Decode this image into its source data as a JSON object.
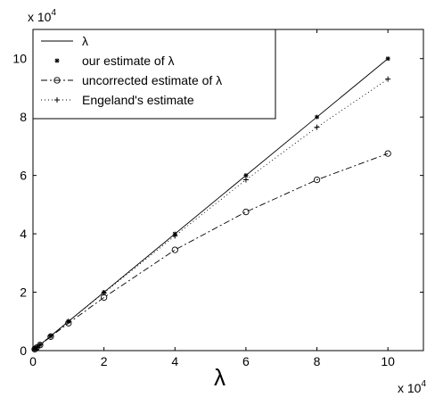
{
  "chart_data": {
    "type": "line",
    "title": "",
    "xlabel": "λ",
    "ylabel": "",
    "x_multiplier": "x 10",
    "x_multiplier_exp": "4",
    "y_multiplier": "x 10",
    "y_multiplier_exp": "4",
    "xlim": [
      0,
      110000
    ],
    "ylim": [
      0,
      110000
    ],
    "xticks": [
      0,
      20000,
      40000,
      60000,
      80000,
      100000
    ],
    "yticks": [
      0,
      20000,
      40000,
      60000,
      80000,
      100000
    ],
    "xtick_labels": [
      "0",
      "2",
      "4",
      "6",
      "8",
      "10"
    ],
    "ytick_labels": [
      "0",
      "2",
      "4",
      "6",
      "8",
      "10"
    ],
    "grid": false,
    "legend_position": "top-left",
    "x": [
      500,
      1000,
      2000,
      5000,
      10000,
      20000,
      40000,
      60000,
      80000,
      100000
    ],
    "series": [
      {
        "name": "λ",
        "style": "solid",
        "marker": "none",
        "values": [
          500,
          1000,
          2000,
          5000,
          10000,
          20000,
          40000,
          60000,
          80000,
          100000
        ]
      },
      {
        "name": "our estimate of λ",
        "style": "none",
        "marker": "star",
        "values": [
          500,
          1000,
          2000,
          5000,
          10000,
          20000,
          40000,
          60000,
          80000,
          100000
        ]
      },
      {
        "name": "uncorrected estimate of λ",
        "style": "dashdot",
        "marker": "circle",
        "values": [
          490,
          980,
          1900,
          4800,
          9400,
          18200,
          34500,
          47500,
          58500,
          67500
        ]
      },
      {
        "name": "Engeland's estimate",
        "style": "dotted",
        "marker": "plus",
        "values": [
          500,
          1000,
          2000,
          5000,
          10000,
          19800,
          39300,
          58500,
          76500,
          93000
        ]
      }
    ]
  }
}
